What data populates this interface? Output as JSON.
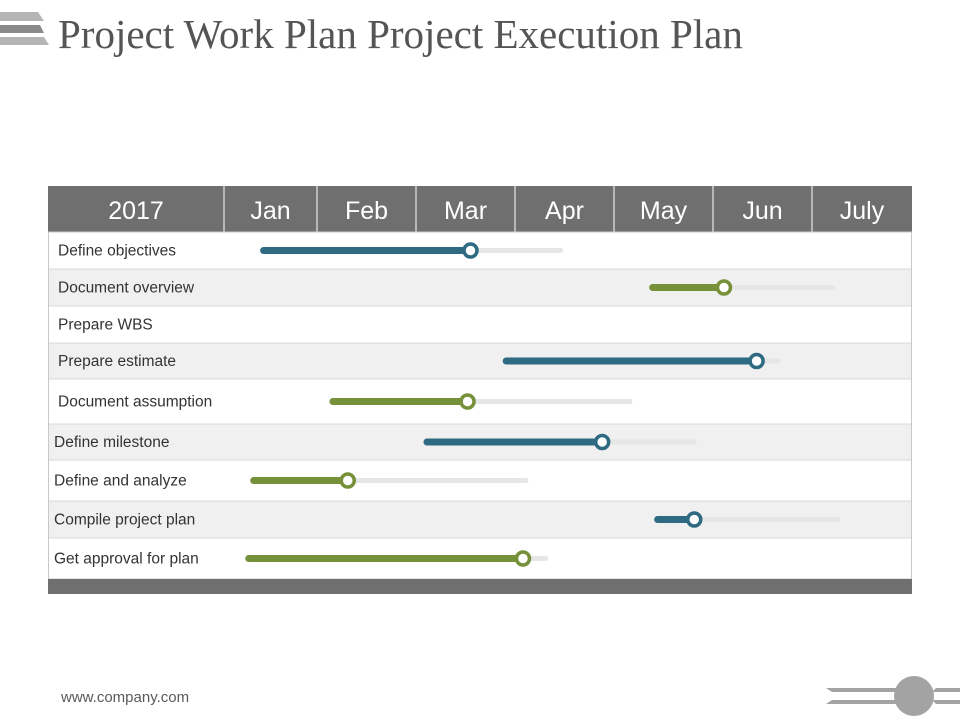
{
  "header": {
    "title": "Project Work Plan Project Execution Plan"
  },
  "footer": {
    "url": "www.company.com"
  },
  "colors": {
    "header_bg": "#6f6f6f",
    "teal": "#2e6a82",
    "green": "#76913a",
    "track": "#e6e6e6",
    "stripe": "#f0f0f0"
  },
  "chart_data": {
    "type": "gantt",
    "year_label": "2017",
    "months": [
      "Jan",
      "Feb",
      "Mar",
      "Apr",
      "May",
      "Jun",
      "July"
    ],
    "tasks": [
      {
        "name": "Define objectives",
        "start": 0.4,
        "progress": 2.49,
        "end": 3.4,
        "color": "teal"
      },
      {
        "name": "Document overview",
        "start": 4.33,
        "progress": 5.05,
        "end": 6.15,
        "color": "green"
      },
      {
        "name": "Prepare WBS"
      },
      {
        "name": "Prepare estimate",
        "start": 2.85,
        "progress": 5.38,
        "end": 5.6,
        "color": "teal"
      },
      {
        "name": "Document assumption",
        "start": 1.1,
        "progress": 2.46,
        "end": 4.1,
        "color": "green"
      },
      {
        "name": "Define milestone",
        "start": 2.05,
        "progress": 3.82,
        "end": 4.75,
        "color": "teal"
      },
      {
        "name": "Define and analyze",
        "start": 0.3,
        "progress": 1.25,
        "end": 3.05,
        "color": "green"
      },
      {
        "name": "Compile project plan",
        "start": 4.38,
        "progress": 4.75,
        "end": 6.2,
        "color": "teal"
      },
      {
        "name": "Get approval for plan",
        "start": 0.25,
        "progress": 3.02,
        "end": 3.25,
        "color": "green"
      }
    ]
  }
}
